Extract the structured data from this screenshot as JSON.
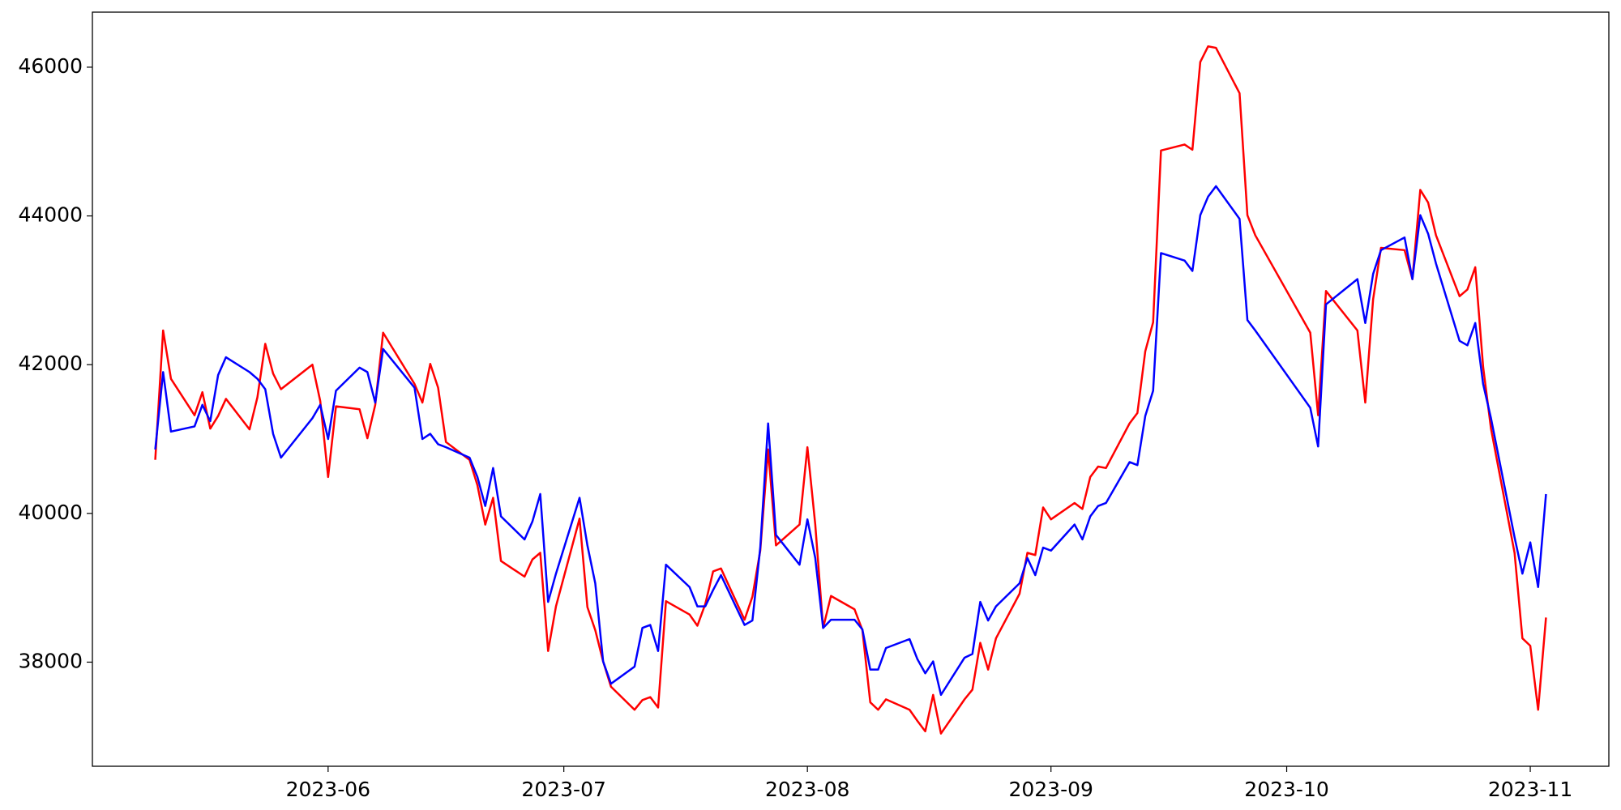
{
  "chart_data": {
    "type": "line",
    "x": [
      "2023-05-10",
      "2023-05-11",
      "2023-05-12",
      "2023-05-15",
      "2023-05-16",
      "2023-05-17",
      "2023-05-18",
      "2023-05-19",
      "2023-05-22",
      "2023-05-23",
      "2023-05-24",
      "2023-05-25",
      "2023-05-26",
      "2023-05-30",
      "2023-05-31",
      "2023-06-01",
      "2023-06-02",
      "2023-06-05",
      "2023-06-06",
      "2023-06-07",
      "2023-06-08",
      "2023-06-12",
      "2023-06-13",
      "2023-06-14",
      "2023-06-15",
      "2023-06-16",
      "2023-06-19",
      "2023-06-20",
      "2023-06-21",
      "2023-06-22",
      "2023-06-23",
      "2023-06-26",
      "2023-06-27",
      "2023-06-28",
      "2023-06-29",
      "2023-06-30",
      "2023-07-03",
      "2023-07-04",
      "2023-07-05",
      "2023-07-06",
      "2023-07-07",
      "2023-07-10",
      "2023-07-11",
      "2023-07-12",
      "2023-07-13",
      "2023-07-14",
      "2023-07-17",
      "2023-07-18",
      "2023-07-19",
      "2023-07-20",
      "2023-07-21",
      "2023-07-24",
      "2023-07-25",
      "2023-07-26",
      "2023-07-27",
      "2023-07-28",
      "2023-07-31",
      "2023-08-01",
      "2023-08-02",
      "2023-08-03",
      "2023-08-04",
      "2023-08-07",
      "2023-08-08",
      "2023-08-09",
      "2023-08-10",
      "2023-08-11",
      "2023-08-14",
      "2023-08-15",
      "2023-08-16",
      "2023-08-17",
      "2023-08-18",
      "2023-08-21",
      "2023-08-22",
      "2023-08-23",
      "2023-08-24",
      "2023-08-25",
      "2023-08-28",
      "2023-08-29",
      "2023-08-30",
      "2023-08-31",
      "2023-09-01",
      "2023-09-04",
      "2023-09-05",
      "2023-09-06",
      "2023-09-07",
      "2023-09-08",
      "2023-09-11",
      "2023-09-12",
      "2023-09-13",
      "2023-09-14",
      "2023-09-15",
      "2023-09-18",
      "2023-09-19",
      "2023-09-20",
      "2023-09-21",
      "2023-09-22",
      "2023-09-25",
      "2023-09-26",
      "2023-09-27",
      "2023-10-04",
      "2023-10-05",
      "2023-10-06",
      "2023-10-10",
      "2023-10-11",
      "2023-10-12",
      "2023-10-13",
      "2023-10-16",
      "2023-10-17",
      "2023-10-18",
      "2023-10-19",
      "2023-10-20",
      "2023-10-23",
      "2023-10-24",
      "2023-10-25",
      "2023-10-26",
      "2023-10-27",
      "2023-10-30",
      "2023-10-31",
      "2023-11-01",
      "2023-11-02",
      "2023-11-03"
    ],
    "series": [
      {
        "color": "#ff0000",
        "values": [
          40720,
          42460,
          41810,
          41320,
          41630,
          41140,
          41310,
          41540,
          41130,
          41560,
          42280,
          41880,
          41670,
          42000,
          41510,
          40490,
          41440,
          41400,
          41010,
          41460,
          42430,
          41740,
          41490,
          42010,
          41690,
          40960,
          40720,
          40380,
          39850,
          40210,
          39360,
          39150,
          39380,
          39470,
          38150,
          38750,
          39930,
          38740,
          38430,
          38010,
          37670,
          37360,
          37490,
          37530,
          37390,
          38820,
          38640,
          38490,
          38780,
          39220,
          39260,
          38570,
          38880,
          39500,
          40860,
          39570,
          39850,
          40890,
          39850,
          38460,
          38890,
          38710,
          38430,
          37460,
          37360,
          37500,
          37360,
          37210,
          37070,
          37560,
          37040,
          37500,
          37630,
          38260,
          37900,
          38320,
          38920,
          39470,
          39440,
          40080,
          39920,
          40140,
          40060,
          40490,
          40630,
          40610,
          41210,
          41350,
          42180,
          42570,
          44880,
          44960,
          44890,
          46070,
          46280,
          46260,
          45650,
          44010,
          43740,
          42430,
          41320,
          42990,
          42460,
          41490,
          42880,
          43570,
          43540,
          43150,
          44350,
          44180,
          43740,
          42920,
          43010,
          43310,
          41970,
          41140,
          39470,
          38320,
          38220,
          37360,
          38600
        ]
      },
      {
        "color": "#0000ff",
        "values": [
          40860,
          41900,
          41100,
          41170,
          41460,
          41240,
          41860,
          42100,
          41900,
          41810,
          41670,
          41070,
          40750,
          41280,
          41460,
          41000,
          41650,
          41960,
          41900,
          41490,
          42210,
          41690,
          41000,
          41070,
          40930,
          40890,
          40750,
          40490,
          40100,
          40610,
          39960,
          39650,
          39890,
          40260,
          38810,
          39190,
          40210,
          39570,
          39060,
          38010,
          37710,
          37940,
          38460,
          38500,
          38150,
          39310,
          39010,
          38750,
          38750,
          38970,
          39170,
          38500,
          38560,
          39540,
          41210,
          39710,
          39310,
          39920,
          39400,
          38460,
          38570,
          38570,
          38440,
          37900,
          37900,
          38190,
          38310,
          38040,
          37850,
          38010,
          37560,
          38060,
          38110,
          38810,
          38560,
          38750,
          39060,
          39400,
          39170,
          39540,
          39500,
          39850,
          39650,
          39960,
          40100,
          40140,
          40690,
          40650,
          41310,
          41650,
          43500,
          43400,
          43260,
          44010,
          44260,
          44400,
          43960,
          42600,
          42460,
          41420,
          40900,
          42810,
          43150,
          42560,
          43220,
          43540,
          43710,
          43150,
          44010,
          43760,
          43360,
          42320,
          42260,
          42560,
          41740,
          41280,
          39680,
          39190,
          39610,
          39010,
          40260
        ]
      }
    ],
    "xlim": [
      "2023-05-02",
      "2023-11-11"
    ],
    "xticks": [
      {
        "value": "2023-06-01",
        "label": "2023-06"
      },
      {
        "value": "2023-07-01",
        "label": "2023-07"
      },
      {
        "value": "2023-08-01",
        "label": "2023-08"
      },
      {
        "value": "2023-09-01",
        "label": "2023-09"
      },
      {
        "value": "2023-10-01",
        "label": "2023-10"
      },
      {
        "value": "2023-11-01",
        "label": "2023-11"
      }
    ],
    "ylim": [
      36600,
      46740
    ],
    "yticks": [
      38000,
      40000,
      42000,
      44000,
      46000
    ],
    "grid": false
  }
}
